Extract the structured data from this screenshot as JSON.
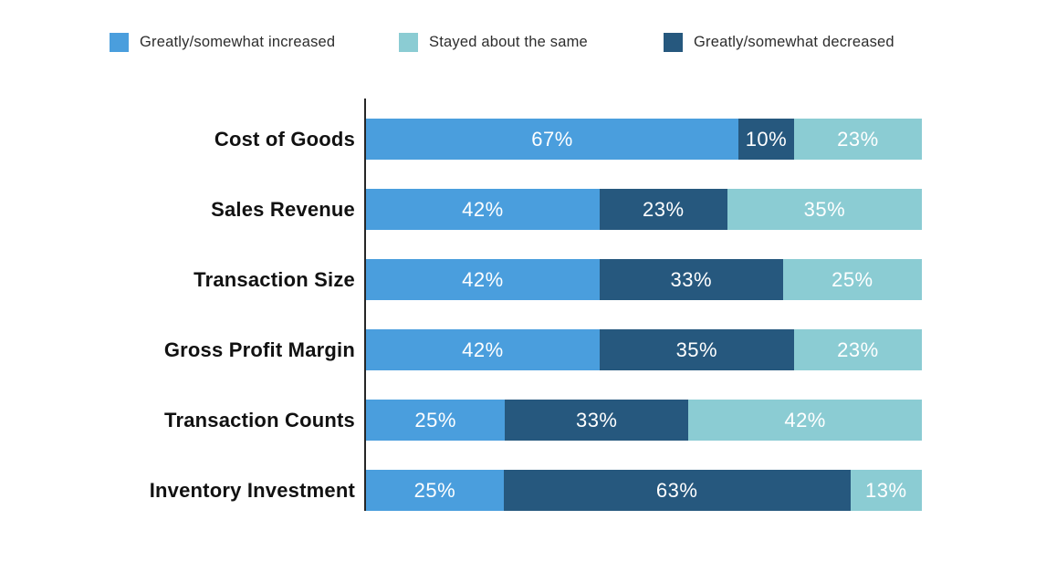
{
  "legend": {
    "items": [
      {
        "label": "Greatly/somewhat increased",
        "color": "#4A9EDD"
      },
      {
        "label": "Stayed about the same",
        "color": "#8BCCD3"
      },
      {
        "label": "Greatly/somewhat decreased",
        "color": "#26587E"
      }
    ]
  },
  "chart_data": {
    "type": "bar",
    "orientation": "horizontal",
    "stacked": true,
    "legend_position": "top",
    "grid": false,
    "xlim": [
      0,
      100
    ],
    "value_suffix": "%",
    "axis_line_color": "#262626",
    "categories": [
      "Cost of Goods",
      "Sales Revenue",
      "Transaction Size",
      "Gross Profit Margin",
      "Transaction Counts",
      "Inventory Investment"
    ],
    "bar_segment_order": [
      "increased",
      "decreased",
      "same"
    ],
    "series": [
      {
        "key": "increased",
        "name": "Greatly/somewhat increased",
        "color": "#4A9EDD",
        "values": [
          67,
          42,
          42,
          42,
          25,
          25
        ]
      },
      {
        "key": "decreased",
        "name": "Greatly/somewhat decreased",
        "color": "#26587E",
        "values": [
          10,
          23,
          33,
          35,
          33,
          63
        ]
      },
      {
        "key": "same",
        "name": "Stayed about the same",
        "color": "#8BCCD3",
        "values": [
          23,
          35,
          25,
          23,
          42,
          13
        ]
      }
    ]
  }
}
